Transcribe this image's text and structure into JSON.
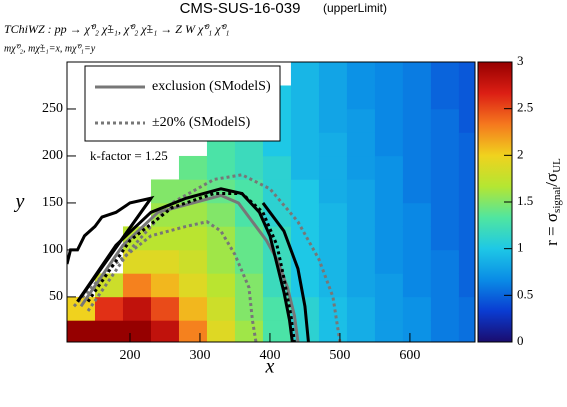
{
  "chart_data": {
    "type": "heatmap",
    "title": "CMS-SUS-16-039",
    "subtitle": "(upperLimit)",
    "process": "TChiWZ : pp → χ̃⁰₂ χ̃±₁, χ̃⁰₂ χ̃±₁ → Z W χ̃⁰₁ χ̃⁰₁",
    "mass_label": "mχ̃⁰₂, mχ̃±₁=x, mχ̃⁰₁=y",
    "xlabel": "x",
    "ylabel": "y",
    "zlabel": [
      "r = σ",
      "signal",
      "/σ",
      "UL"
    ],
    "annotation": "k-factor = 1.25",
    "xlim": [
      110,
      693
    ],
    "ylim": [
      2,
      300
    ],
    "xticks": [
      200,
      300,
      400,
      500,
      600
    ],
    "yticks": [
      50,
      100,
      150,
      200,
      250
    ],
    "zlim": [
      0,
      3
    ],
    "zticks": [
      0,
      0.5,
      1,
      1.5,
      2,
      2.5,
      3
    ],
    "colormap": [
      "#1a0c6e",
      "#0a3cd2",
      "#0a8ce6",
      "#1ec8e6",
      "#50e6a0",
      "#b4e632",
      "#f0d21e",
      "#f5781e",
      "#dc1e14",
      "#960000"
    ],
    "xbins": [
      110,
      150,
      190,
      230,
      270,
      310,
      350,
      390,
      430,
      470,
      510,
      550,
      590,
      630,
      670,
      710
    ],
    "ybins": [
      0,
      25,
      50,
      75,
      100,
      125,
      150,
      175,
      200,
      225,
      250,
      275,
      300
    ],
    "z": [
      [
        3,
        2.0
      ],
      [
        3,
        2.6,
        1.8
      ],
      [
        3,
        2.8,
        2.3,
        1.9,
        1.7
      ],
      [
        2.8,
        2.5,
        2.1,
        1.9,
        1.7,
        1.6,
        1.5
      ],
      [
        2.3,
        2.1,
        1.9,
        1.8,
        1.7,
        1.6,
        1.5,
        1.4
      ],
      [
        1.9,
        1.8,
        1.7,
        1.6,
        1.6,
        1.5,
        1.4,
        1.3,
        1.3
      ],
      [
        1.6,
        1.5,
        1.5,
        1.4,
        1.4,
        1.3,
        1.3,
        1.2,
        1.2,
        1.2
      ],
      [
        1.3,
        1.3,
        1.2,
        1.2,
        1.2,
        1.1,
        1.1,
        1.1,
        1.0,
        1.0,
        1.0
      ],
      [
        1.1,
        1.1,
        1.0,
        1.0,
        1.0,
        1.0,
        1.0,
        0.9,
        0.9,
        0.9,
        0.9,
        0.9
      ],
      [
        0.95,
        0.95,
        0.9,
        0.9,
        0.9,
        0.9,
        0.85,
        0.85,
        0.85,
        0.8,
        0.8,
        0.8
      ],
      [
        0.85,
        0.85,
        0.8,
        0.8,
        0.8,
        0.8,
        0.8,
        0.75,
        0.75,
        0.75,
        0.7,
        0.7
      ],
      [
        0.75,
        0.75,
        0.75,
        0.7,
        0.7,
        0.7,
        0.7,
        0.7,
        0.65,
        0.65,
        0.65,
        0.65
      ],
      [
        0.7,
        0.7,
        0.65,
        0.65,
        0.65,
        0.65,
        0.6,
        0.6,
        0.6,
        0.6,
        0.6,
        0.6
      ],
      [
        0.6,
        0.6,
        0.6,
        0.6,
        0.55,
        0.55,
        0.55,
        0.55,
        0.55,
        0.55,
        0.5,
        0.5
      ],
      [
        0.55,
        0.55,
        0.5,
        0.5,
        0.5,
        0.5,
        0.5,
        0.5,
        0.5,
        0.45,
        0.45,
        0.45
      ]
    ],
    "contours": [
      {
        "name": "exclusion (SModelS)",
        "color": "#777777",
        "dash": false,
        "x": [
          130,
          190,
          240,
          290,
          330,
          355,
          375,
          395,
          410,
          425,
          435,
          440
        ],
        "y": [
          40,
          105,
          140,
          150,
          158,
          150,
          130,
          110,
          90,
          60,
          30,
          2
        ]
      },
      {
        "name": "±20% (SModelS)",
        "color": "#777777",
        "dash": true,
        "x": [
          140,
          200,
          260,
          320,
          360,
          400,
          440,
          470,
          490,
          500
        ],
        "y": [
          35,
          100,
          150,
          175,
          180,
          165,
          130,
          90,
          50,
          2
        ]
      },
      {
        "color": "#777777",
        "dash": true,
        "x": [
          120,
          170,
          230,
          280,
          310,
          330,
          350,
          370,
          375,
          380
        ],
        "y": [
          40,
          80,
          115,
          125,
          130,
          120,
          95,
          60,
          25,
          2
        ]
      },
      {
        "color": "#000000",
        "dash": false,
        "x": [
          125,
          180,
          230,
          280,
          330,
          360,
          385,
          400,
          410,
          420,
          428,
          432
        ],
        "y": [
          45,
          105,
          140,
          155,
          165,
          160,
          140,
          115,
          85,
          55,
          25,
          2
        ]
      },
      {
        "color": "#000000",
        "dash": false,
        "x": [
          390,
          420,
          440,
          450,
          455
        ],
        "y": [
          150,
          120,
          80,
          40,
          2
        ]
      },
      {
        "color": "#000000",
        "dash": true,
        "x": [
          140,
          200,
          260,
          320,
          360,
          390,
          410,
          420,
          430,
          435
        ],
        "y": [
          45,
          110,
          145,
          160,
          160,
          140,
          105,
          70,
          30,
          2
        ]
      },
      {
        "color": "#000000",
        "dash": false,
        "x": [
          110,
          115,
          125,
          135,
          150,
          160,
          180,
          200,
          230,
          130
        ],
        "y": [
          85,
          100,
          100,
          115,
          125,
          135,
          140,
          150,
          155,
          50
        ]
      },
      {
        "color": "#000000",
        "dash": false,
        "x": [
          125,
          230
        ],
        "y": [
          45,
          155
        ]
      }
    ]
  }
}
